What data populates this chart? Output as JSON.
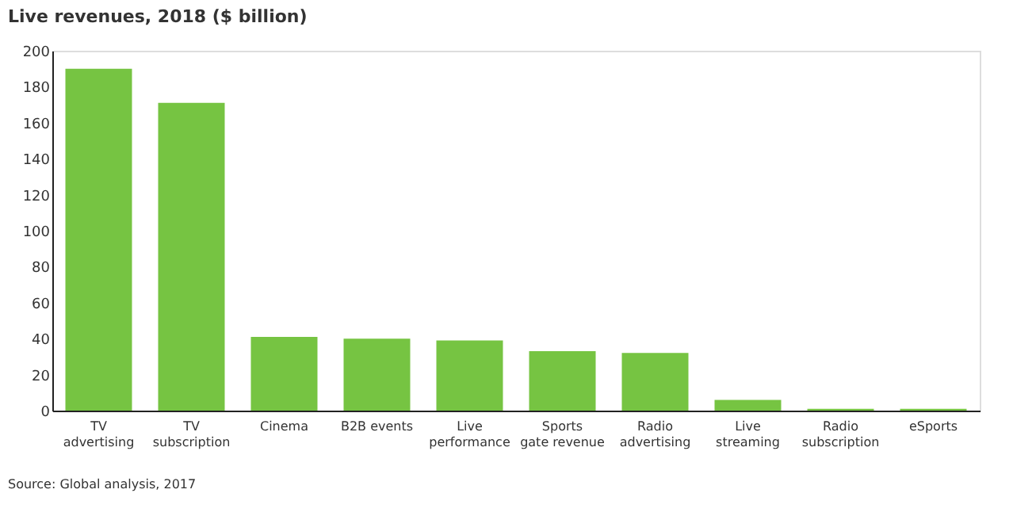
{
  "chart_data": {
    "type": "bar",
    "title": "Live revenues, 2018 ($ billion)",
    "categories": [
      "TV\nadvertising",
      "TV\nsubscription",
      "Cinema",
      "B2B events",
      "Live\nperformance",
      "Sports\ngate revenue",
      "Radio\nadvertising",
      "Live\nstreaming",
      "Radio\nsubscription",
      "eSports"
    ],
    "values": [
      190,
      171,
      41,
      40,
      39,
      33,
      32,
      6,
      1,
      1
    ],
    "color": "#76c442",
    "ylim": [
      0,
      200
    ],
    "yticks": [
      0,
      20,
      40,
      60,
      80,
      100,
      120,
      140,
      160,
      180,
      200
    ],
    "grid": false,
    "annotations": [
      "Source: Global analysis, 2017"
    ]
  }
}
